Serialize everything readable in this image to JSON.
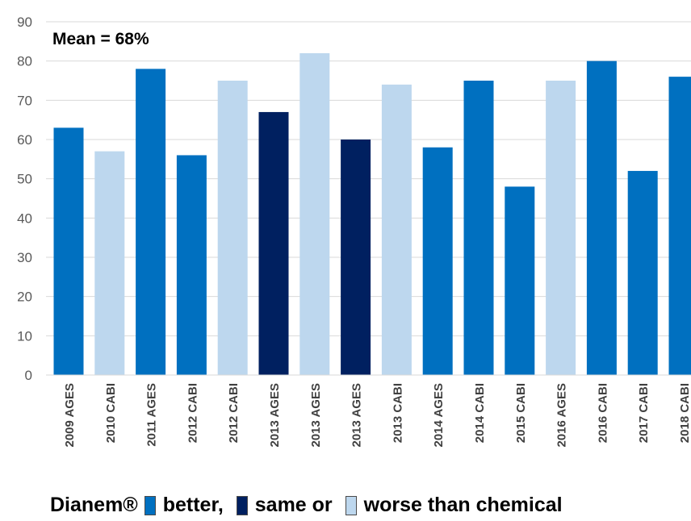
{
  "chart_data": {
    "type": "bar",
    "annotation": "Mean = 68%",
    "ylim": [
      0,
      90
    ],
    "yticks": [
      0,
      10,
      20,
      30,
      40,
      50,
      60,
      70,
      80,
      90
    ],
    "categories": [
      "2009 AGES",
      "2010 CABI",
      "2011 AGES",
      "2012 CABI",
      "2012 CABI",
      "2013 AGES",
      "2013 AGES",
      "2013 AGES",
      "2013 CABI",
      "2014 AGES",
      "2014 CABI",
      "2015 CABI",
      "2016 AGES",
      "2016 CABI",
      "2017 CABI",
      "2018 CABI"
    ],
    "values": [
      63,
      57,
      78,
      56,
      75,
      67,
      82,
      60,
      74,
      58,
      75,
      48,
      75,
      80,
      52,
      76
    ],
    "classes": [
      "better",
      "worse",
      "better",
      "better",
      "worse",
      "same",
      "worse",
      "same",
      "worse",
      "better",
      "better",
      "better",
      "worse",
      "better",
      "better",
      "better"
    ],
    "colors": {
      "better": "#0070C0",
      "same": "#002060",
      "worse": "#BDD7EE"
    },
    "grid": true
  },
  "legend": {
    "prefix": "Dianem®",
    "better_label": "better,",
    "same_label": "same or",
    "worse_label": "worse than chemical"
  }
}
